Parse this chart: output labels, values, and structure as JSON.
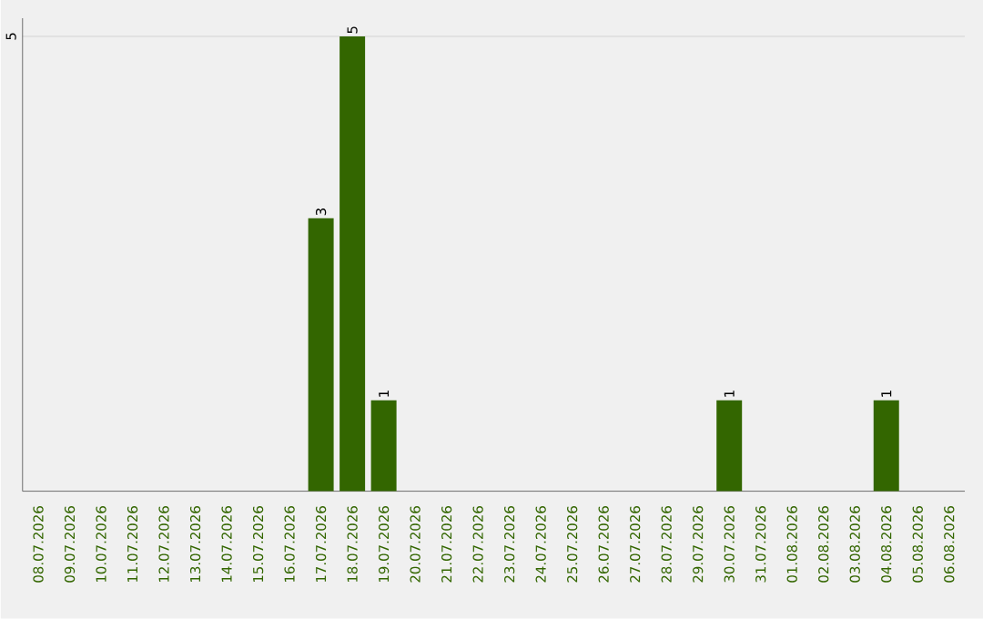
{
  "chart_data": {
    "type": "bar",
    "categories": [
      "08.07.2026",
      "09.07.2026",
      "10.07.2026",
      "11.07.2026",
      "12.07.2026",
      "13.07.2026",
      "14.07.2026",
      "15.07.2026",
      "16.07.2026",
      "17.07.2026",
      "18.07.2026",
      "19.07.2026",
      "20.07.2026",
      "21.07.2026",
      "22.07.2026",
      "23.07.2026",
      "24.07.2026",
      "25.07.2026",
      "26.07.2026",
      "27.07.2026",
      "28.07.2026",
      "29.07.2026",
      "30.07.2026",
      "31.07.2026",
      "01.08.2026",
      "02.08.2026",
      "03.08.2026",
      "04.08.2026",
      "05.08.2026",
      "06.08.2026"
    ],
    "values": [
      0,
      0,
      0,
      0,
      0,
      0,
      0,
      0,
      0,
      3,
      5,
      1,
      0,
      0,
      0,
      0,
      0,
      0,
      0,
      0,
      0,
      0,
      1,
      0,
      0,
      0,
      0,
      1,
      0,
      0
    ],
    "value_labels": [
      null,
      null,
      null,
      null,
      null,
      null,
      null,
      null,
      null,
      "3",
      "5",
      "1",
      null,
      null,
      null,
      null,
      null,
      null,
      null,
      null,
      null,
      null,
      "1",
      null,
      null,
      null,
      null,
      "1",
      null,
      null
    ],
    "color": "#336600",
    "ylim": [
      0,
      5.2
    ],
    "yticks": [
      5
    ],
    "grid": "y"
  }
}
